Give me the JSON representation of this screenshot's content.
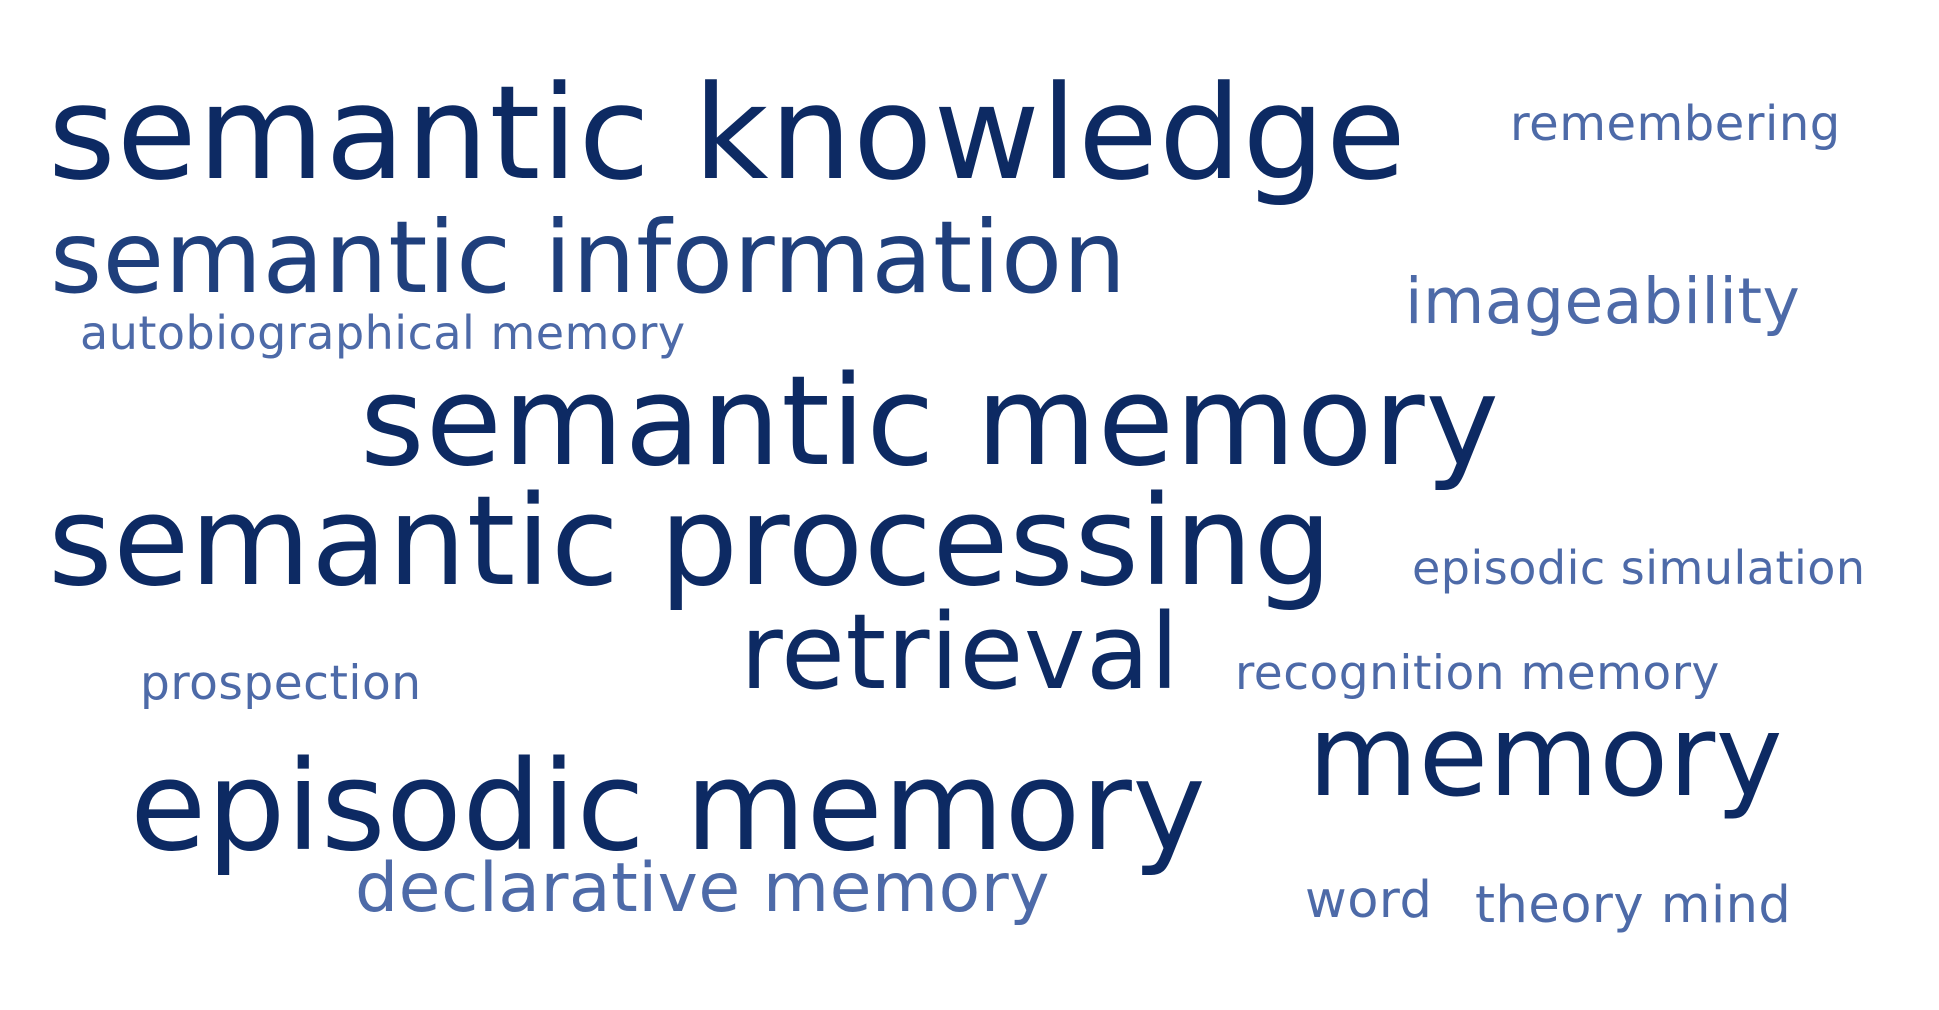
{
  "colors": {
    "dark": "#0d2a63",
    "medium": "#1f3f7c",
    "light": "#4d6aa8",
    "background": "#ffffff"
  },
  "words": [
    {
      "text": "semantic knowledge",
      "tone": "dark"
    },
    {
      "text": "remembering",
      "tone": "light"
    },
    {
      "text": "semantic information",
      "tone": "medium"
    },
    {
      "text": "imageability",
      "tone": "light"
    },
    {
      "text": "autobiographical memory",
      "tone": "light"
    },
    {
      "text": "semantic memory",
      "tone": "dark"
    },
    {
      "text": "semantic processing",
      "tone": "dark"
    },
    {
      "text": "episodic simulation",
      "tone": "light"
    },
    {
      "text": "retrieval",
      "tone": "dark"
    },
    {
      "text": "recognition memory",
      "tone": "light"
    },
    {
      "text": "prospection",
      "tone": "light"
    },
    {
      "text": "memory",
      "tone": "dark"
    },
    {
      "text": "episodic memory",
      "tone": "dark"
    },
    {
      "text": "declarative memory",
      "tone": "light"
    },
    {
      "text": "word",
      "tone": "light"
    },
    {
      "text": "theory mind",
      "tone": "light"
    }
  ]
}
